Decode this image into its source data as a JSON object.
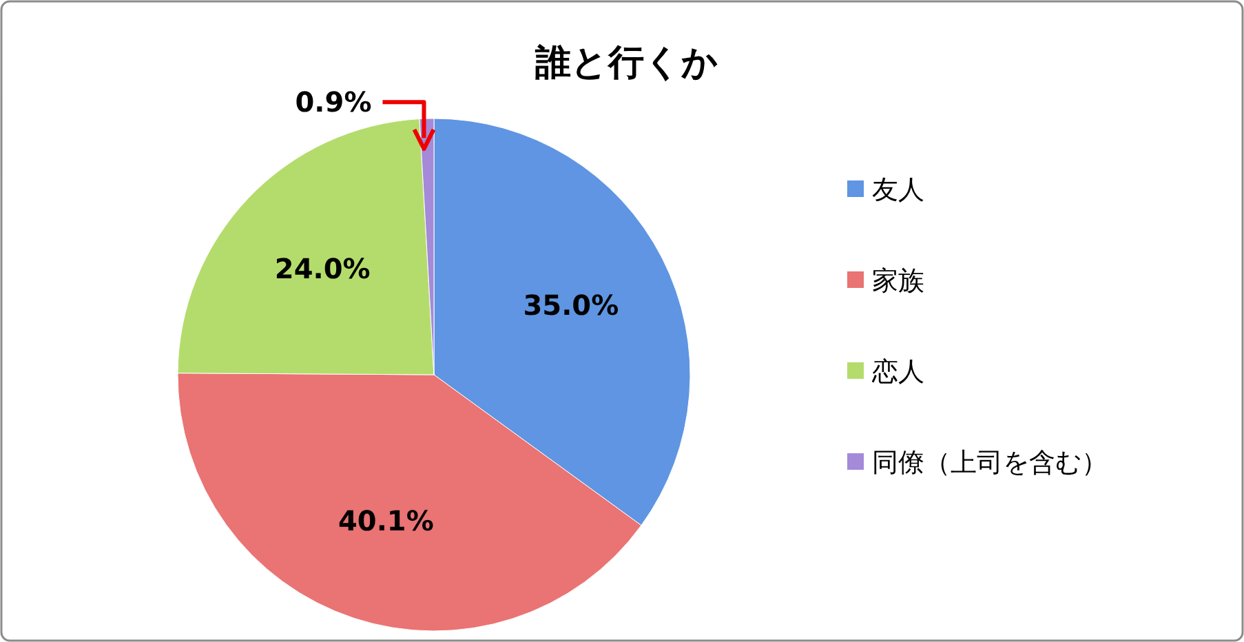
{
  "chart_data": {
    "type": "pie",
    "title": "誰と行くか",
    "categories": [
      "友人",
      "家族",
      "恋人",
      "同僚（上司を含む）"
    ],
    "values": [
      35.0,
      40.1,
      24.0,
      0.9
    ],
    "colors": [
      "#5f95e2",
      "#ea7373",
      "#b4dc6c",
      "#a48ad8"
    ],
    "value_labels": [
      "35.0%",
      "40.1%",
      "24.0%",
      "0.9%"
    ],
    "legend": "right"
  }
}
